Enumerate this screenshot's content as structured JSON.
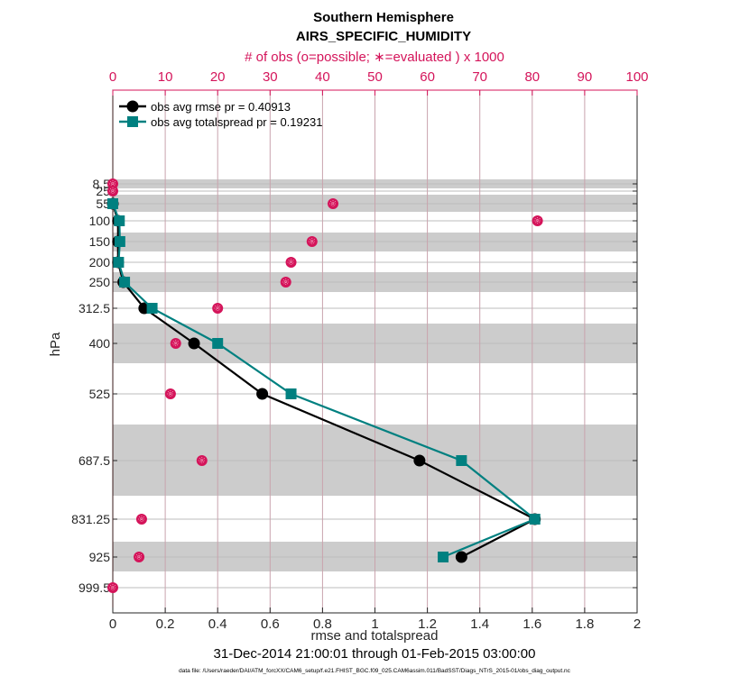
{
  "chart_data": {
    "type": "line",
    "title": "Southern Hemisphere",
    "subtitle": "AIRS_SPECIFIC_HUMIDITY",
    "top_axis_label": "# of obs (o=possible; ∗=evaluated ) x 1000",
    "xlabel": "rmse and totalspread",
    "ylabel": "hPa",
    "date_range": "31-Dec-2014 21:00:01 through 01-Feb-2015 03:00:00",
    "data_file": "data file: /Users/raeder/DAI/ATM_forcXX/CAM6_setup/f.e21.FHIST_BGC.f09_025.CAM6assim.011/BadSST/Diags_NTrS_2015-01/obs_diag_output.nc",
    "xlim": [
      0,
      2
    ],
    "x_ticks": [
      "0",
      "0.2",
      "0.4",
      "0.6",
      "0.8",
      "1",
      "1.2",
      "1.4",
      "1.6",
      "1.8",
      "2"
    ],
    "top_xlim": [
      0,
      100
    ],
    "top_ticks": [
      "0",
      "10",
      "20",
      "30",
      "40",
      "50",
      "60",
      "70",
      "80",
      "90",
      "100"
    ],
    "y_axis": "pressure, increasing downward",
    "y_levels": [
      8.5,
      25,
      55,
      100,
      150,
      200,
      250,
      312.5,
      400,
      525,
      687.5,
      831.25,
      925,
      999.5
    ],
    "y_tick_labels": [
      "8.5",
      "25",
      "55",
      "100",
      "150",
      "200",
      "250",
      "312.5",
      "400",
      "525",
      "687.5",
      "831.25",
      "925",
      "999.5"
    ],
    "grid": true,
    "legend_position": "top-left",
    "legend": [
      {
        "label": "obs avg rmse pr = 0.40913",
        "color": "#000000",
        "marker": "circle"
      },
      {
        "label": "obs avg totalspread pr = 0.19231",
        "color": "#008080",
        "marker": "square"
      }
    ],
    "series": [
      {
        "name": "obs avg rmse",
        "color": "#000000",
        "marker": "circle",
        "levels": [
          55,
          100,
          150,
          200,
          250,
          312.5,
          400,
          525,
          687.5,
          831.25,
          925
        ],
        "values": [
          0.0,
          0.02,
          0.02,
          0.02,
          0.04,
          0.12,
          0.31,
          0.57,
          1.17,
          1.61,
          1.33
        ]
      },
      {
        "name": "obs avg totalspread",
        "color": "#008080",
        "marker": "square",
        "levels": [
          55,
          100,
          150,
          200,
          250,
          312.5,
          400,
          525,
          687.5,
          831.25,
          925
        ],
        "values": [
          0.0,
          0.025,
          0.027,
          0.022,
          0.045,
          0.15,
          0.4,
          0.68,
          1.33,
          1.61,
          1.26
        ]
      },
      {
        "name": "# of obs evaluated (x1000)",
        "color": "#d4145a",
        "marker": "star-circle",
        "axis": "top",
        "levels": [
          8.5,
          25,
          55,
          100,
          150,
          200,
          250,
          312.5,
          400,
          525,
          687.5,
          831.25,
          925,
          999.5
        ],
        "values": [
          0,
          0,
          42,
          81,
          38,
          34,
          33,
          20,
          12,
          11,
          17,
          5.5,
          5,
          0
        ]
      }
    ]
  }
}
